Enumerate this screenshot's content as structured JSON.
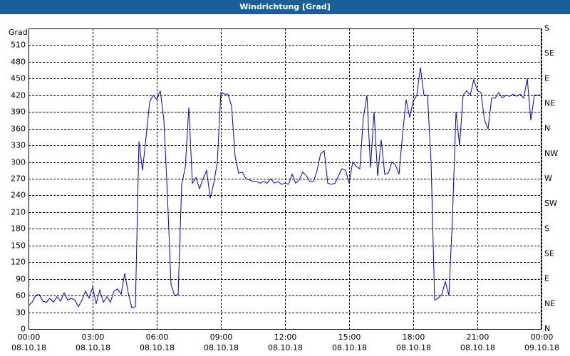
{
  "chart_data": {
    "type": "line",
    "title": "Windrichtung [Grad]",
    "y_label": "Grad",
    "color": "#0000c8",
    "grid": true,
    "xlim": [
      0,
      1440
    ],
    "xticks": [
      {
        "value": 0,
        "label": "00:00\n08.10.18"
      },
      {
        "value": 180,
        "label": "03:00\n08.10.18"
      },
      {
        "value": 360,
        "label": "06:00\n08.10.18"
      },
      {
        "value": 540,
        "label": "09:00\n08.10.18"
      },
      {
        "value": 720,
        "label": "12:00\n08.10.18"
      },
      {
        "value": 900,
        "label": "15:00\n08.10.18"
      },
      {
        "value": 1080,
        "label": "18:00\n08.10.18"
      },
      {
        "value": 1260,
        "label": "21:00\n08.10.18"
      },
      {
        "value": 1440,
        "label": "00:00\n09.10.18"
      }
    ],
    "ylim": [
      0,
      540
    ],
    "yticks": [
      0,
      30,
      60,
      90,
      120,
      150,
      180,
      210,
      240,
      270,
      300,
      330,
      360,
      390,
      420,
      450,
      480,
      510
    ],
    "y2lim": [
      0,
      540
    ],
    "y2ticks": [
      {
        "value": 0,
        "label": "N"
      },
      {
        "value": 45,
        "label": "NE"
      },
      {
        "value": 90,
        "label": "E"
      },
      {
        "value": 135,
        "label": "SE"
      },
      {
        "value": 180,
        "label": "S"
      },
      {
        "value": 225,
        "label": "SW"
      },
      {
        "value": 270,
        "label": "W"
      },
      {
        "value": 315,
        "label": "NW"
      },
      {
        "value": 360,
        "label": "N"
      },
      {
        "value": 405,
        "label": "NE"
      },
      {
        "value": 450,
        "label": "E"
      },
      {
        "value": 495,
        "label": "SE"
      },
      {
        "value": 540,
        "label": "S"
      }
    ],
    "x": [
      0,
      10,
      20,
      30,
      40,
      50,
      60,
      70,
      80,
      90,
      100,
      110,
      120,
      130,
      140,
      150,
      160,
      170,
      180,
      190,
      200,
      210,
      220,
      230,
      240,
      250,
      260,
      270,
      280,
      290,
      300,
      310,
      320,
      330,
      340,
      350,
      360,
      370,
      380,
      390,
      400,
      410,
      420,
      430,
      440,
      450,
      460,
      470,
      480,
      490,
      500,
      510,
      520,
      530,
      540,
      550,
      560,
      570,
      580,
      590,
      600,
      610,
      620,
      630,
      640,
      650,
      660,
      670,
      680,
      690,
      700,
      710,
      720,
      730,
      740,
      750,
      760,
      770,
      780,
      790,
      800,
      810,
      820,
      830,
      840,
      850,
      860,
      870,
      880,
      890,
      900,
      910,
      920,
      930,
      940,
      950,
      960,
      970,
      980,
      990,
      1000,
      1010,
      1020,
      1030,
      1040,
      1050,
      1060,
      1070,
      1080,
      1090,
      1100,
      1110,
      1120,
      1130,
      1140,
      1150,
      1160,
      1170,
      1180,
      1190,
      1200,
      1210,
      1220,
      1230,
      1240,
      1250,
      1260,
      1270,
      1280,
      1290,
      1300,
      1310,
      1320,
      1330,
      1340,
      1350,
      1360,
      1370,
      1380,
      1390,
      1400,
      1410,
      1420,
      1430,
      1440
    ],
    "values": [
      42,
      48,
      60,
      62,
      50,
      48,
      55,
      48,
      58,
      50,
      65,
      52,
      55,
      52,
      40,
      52,
      68,
      55,
      75,
      45,
      70,
      48,
      58,
      48,
      68,
      72,
      62,
      100,
      65,
      38,
      40,
      337,
      285,
      345,
      408,
      420,
      412,
      428,
      375,
      240,
      80,
      60,
      62,
      260,
      290,
      398,
      262,
      272,
      252,
      270,
      285,
      235,
      262,
      300,
      425,
      422,
      422,
      400,
      310,
      280,
      282,
      270,
      268,
      265,
      265,
      262,
      265,
      262,
      270,
      262,
      265,
      260,
      262,
      260,
      278,
      262,
      268,
      282,
      275,
      265,
      265,
      285,
      315,
      320,
      262,
      260,
      262,
      275,
      288,
      285,
      262,
      300,
      292,
      288,
      380,
      420,
      290,
      390,
      275,
      340,
      278,
      280,
      300,
      295,
      278,
      350,
      412,
      380,
      410,
      420,
      470,
      420,
      420,
      300,
      52,
      55,
      62,
      85,
      60,
      200,
      390,
      330,
      420,
      428,
      420,
      448,
      428,
      425,
      375,
      360,
      415,
      415,
      425,
      415,
      420,
      418,
      422,
      418,
      422,
      415,
      450,
      375,
      420,
      420,
      420
    ]
  }
}
